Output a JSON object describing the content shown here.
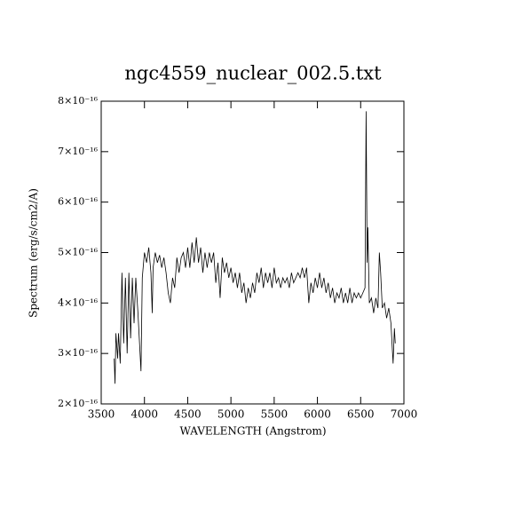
{
  "chart_data": {
    "type": "line",
    "title": "ngc4559_nuclear_002.5.txt",
    "x_label": "WAVELENGTH (Angstrom)",
    "y_label": "Spectrum (erg/s/cm2/A)",
    "color": "#000000",
    "xlim": [
      3500,
      7000
    ],
    "xticks": [
      3500,
      4000,
      4500,
      5000,
      5500,
      6000,
      6500,
      7000
    ],
    "ylim": [
      2e-16,
      8e-16
    ],
    "yticks": [
      {
        "value": 2e-16,
        "label": "2×10⁻¹⁶"
      },
      {
        "value": 3e-16,
        "label": "3×10⁻¹⁶"
      },
      {
        "value": 4e-16,
        "label": "4×10⁻¹⁶"
      },
      {
        "value": 5e-16,
        "label": "5×10⁻¹⁶"
      },
      {
        "value": 6e-16,
        "label": "6×10⁻¹⁶"
      },
      {
        "value": 7e-16,
        "label": "7×10⁻¹⁶"
      },
      {
        "value": 8e-16,
        "label": "8×10⁻¹⁶"
      }
    ],
    "x": [
      3650,
      3660,
      3670,
      3690,
      3700,
      3720,
      3740,
      3760,
      3780,
      3800,
      3820,
      3840,
      3860,
      3880,
      3900,
      3925,
      3960,
      3975,
      4000,
      4025,
      4050,
      4075,
      4090,
      4100,
      4125,
      4150,
      4175,
      4200,
      4225,
      4250,
      4275,
      4300,
      4325,
      4350,
      4375,
      4400,
      4425,
      4450,
      4475,
      4500,
      4525,
      4550,
      4575,
      4600,
      4625,
      4650,
      4675,
      4700,
      4725,
      4750,
      4775,
      4800,
      4825,
      4850,
      4875,
      4900,
      4925,
      4950,
      4975,
      5000,
      5025,
      5050,
      5075,
      5100,
      5125,
      5150,
      5175,
      5200,
      5225,
      5250,
      5275,
      5300,
      5325,
      5350,
      5375,
      5400,
      5425,
      5450,
      5475,
      5500,
      5525,
      5550,
      5575,
      5600,
      5625,
      5650,
      5675,
      5700,
      5725,
      5750,
      5775,
      5800,
      5825,
      5850,
      5875,
      5900,
      5925,
      5950,
      5975,
      6000,
      6025,
      6050,
      6075,
      6100,
      6125,
      6150,
      6175,
      6200,
      6225,
      6250,
      6275,
      6300,
      6325,
      6350,
      6375,
      6400,
      6425,
      6450,
      6475,
      6500,
      6525,
      6550,
      6563,
      6575,
      6583,
      6600,
      6625,
      6650,
      6675,
      6700,
      6716,
      6731,
      6750,
      6775,
      6800,
      6825,
      6850,
      6875,
      6890,
      6900
    ],
    "values": [
      2.9e-16,
      2.4e-16,
      3.4e-16,
      2.9e-16,
      3.4e-16,
      2.8e-16,
      4.6e-16,
      3.2e-16,
      4.5e-16,
      3e-16,
      4.6e-16,
      3.3e-16,
      4.5e-16,
      3.6e-16,
      4.5e-16,
      3.8e-16,
      2.65e-16,
      4.5e-16,
      5e-16,
      4.8e-16,
      5.1e-16,
      4.6e-16,
      3.8e-16,
      4.7e-16,
      5e-16,
      4.8e-16,
      4.95e-16,
      4.7e-16,
      4.9e-16,
      4.6e-16,
      4.2e-16,
      4e-16,
      4.5e-16,
      4.3e-16,
      4.9e-16,
      4.6e-16,
      4.9e-16,
      5e-16,
      4.7e-16,
      5.1e-16,
      4.7e-16,
      5.2e-16,
      4.8e-16,
      5.3e-16,
      4.8e-16,
      5.1e-16,
      4.6e-16,
      5e-16,
      4.7e-16,
      5e-16,
      4.8e-16,
      5e-16,
      4.4e-16,
      4.8e-16,
      4.1e-16,
      4.9e-16,
      4.6e-16,
      4.8e-16,
      4.5e-16,
      4.7e-16,
      4.4e-16,
      4.6e-16,
      4.3e-16,
      4.6e-16,
      4.2e-16,
      4.4e-16,
      4e-16,
      4.3e-16,
      4.1e-16,
      4.4e-16,
      4.2e-16,
      4.6e-16,
      4.4e-16,
      4.7e-16,
      4.3e-16,
      4.6e-16,
      4.4e-16,
      4.6e-16,
      4.3e-16,
      4.7e-16,
      4.4e-16,
      4.5e-16,
      4.3e-16,
      4.5e-16,
      4.4e-16,
      4.5e-16,
      4.3e-16,
      4.6e-16,
      4.4e-16,
      4.5e-16,
      4.6e-16,
      4.5e-16,
      4.7e-16,
      4.5e-16,
      4.7e-16,
      4e-16,
      4.4e-16,
      4.2e-16,
      4.5e-16,
      4.3e-16,
      4.6e-16,
      4.3e-16,
      4.5e-16,
      4.2e-16,
      4.4e-16,
      4.1e-16,
      4.3e-16,
      4e-16,
      4.2e-16,
      4.1e-16,
      4.3e-16,
      4e-16,
      4.2e-16,
      4e-16,
      4.3e-16,
      4e-16,
      4.2e-16,
      4.1e-16,
      4.2e-16,
      4.1e-16,
      4.2e-16,
      4.3e-16,
      7.8e-16,
      4.8e-16,
      5.5e-16,
      4e-16,
      4.1e-16,
      3.8e-16,
      4.1e-16,
      3.9e-16,
      5e-16,
      4.6e-16,
      3.9e-16,
      4e-16,
      3.7e-16,
      3.9e-16,
      3.6e-16,
      2.8e-16,
      3.5e-16,
      3.2e-16
    ]
  }
}
